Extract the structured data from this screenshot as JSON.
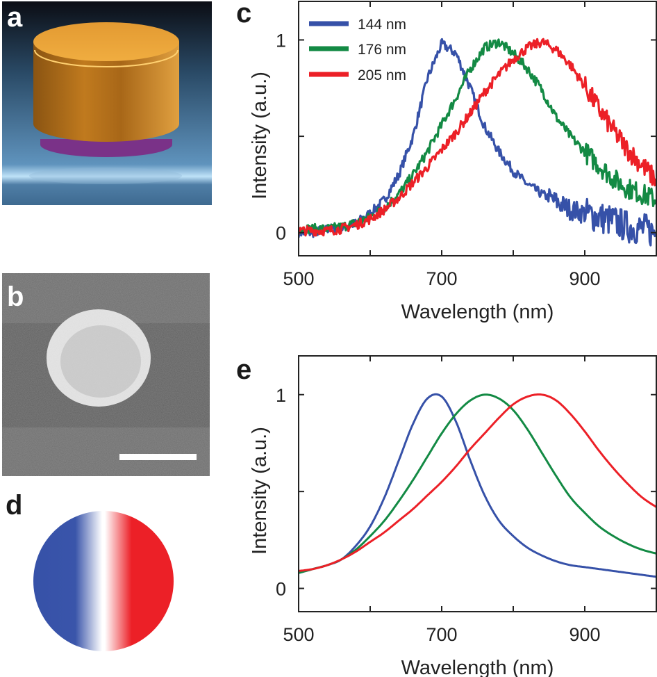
{
  "panels": {
    "a": {
      "letter": "a"
    },
    "b": {
      "letter": "b"
    },
    "c": {
      "letter": "c"
    },
    "d": {
      "letter": "d"
    },
    "e": {
      "letter": "e"
    }
  },
  "colors": {
    "blue": "#3651a8",
    "green": "#138a44",
    "red": "#ec2027",
    "disk_gold": "#d8902a",
    "disk_base": "#8a3a96",
    "substrate": "#5a8ab0"
  },
  "chart_data": [
    {
      "panel": "c",
      "type": "line",
      "xlabel": "Wavelength (nm)",
      "ylabel": "Intensity (a.u.)",
      "xlim": [
        500,
        1000
      ],
      "ylim": [
        -0.12,
        1.2
      ],
      "x_ticks": [
        500,
        600,
        700,
        800,
        900,
        1000
      ],
      "x_tick_labels": [
        "500",
        "700",
        "900"
      ],
      "x_tick_label_values": [
        500,
        700,
        900
      ],
      "y_ticks": [
        0,
        0.5,
        1
      ],
      "y_tick_labels": [
        "0",
        "1"
      ],
      "y_tick_label_values": [
        0,
        1
      ],
      "grid": false,
      "legend": "top-left",
      "x": [
        500,
        520,
        540,
        560,
        580,
        600,
        620,
        640,
        660,
        680,
        700,
        720,
        740,
        760,
        780,
        800,
        820,
        840,
        860,
        880,
        900,
        920,
        940,
        960,
        980,
        1000
      ],
      "series": [
        {
          "name": "144 nm",
          "color": "#3651a8",
          "values": [
            0,
            0,
            0.02,
            0.02,
            0.05,
            0.1,
            0.17,
            0.3,
            0.5,
            0.8,
            0.98,
            0.93,
            0.75,
            0.55,
            0.42,
            0.32,
            0.25,
            0.2,
            0.16,
            0.12,
            0.1,
            0.08,
            0.06,
            0.03,
            0.02,
            0
          ]
        },
        {
          "name": "176 nm",
          "color": "#138a44",
          "values": [
            0.02,
            0.02,
            0.02,
            0.03,
            0.05,
            0.08,
            0.13,
            0.2,
            0.3,
            0.42,
            0.56,
            0.7,
            0.85,
            0.96,
            0.99,
            0.93,
            0.85,
            0.74,
            0.6,
            0.5,
            0.42,
            0.35,
            0.28,
            0.23,
            0.2,
            0.17
          ]
        },
        {
          "name": "205 nm",
          "color": "#ec2027",
          "values": [
            0.01,
            0.01,
            0.01,
            0.02,
            0.04,
            0.07,
            0.12,
            0.18,
            0.26,
            0.34,
            0.43,
            0.52,
            0.62,
            0.73,
            0.82,
            0.9,
            0.96,
            0.99,
            0.95,
            0.87,
            0.76,
            0.64,
            0.53,
            0.43,
            0.35,
            0.27
          ]
        }
      ]
    },
    {
      "panel": "e",
      "type": "line",
      "xlabel": "Wavelength (nm)",
      "ylabel": "Intensity (a.u.)",
      "xlim": [
        500,
        1000
      ],
      "ylim": [
        -0.12,
        1.2
      ],
      "x_ticks": [
        500,
        600,
        700,
        800,
        900,
        1000
      ],
      "x_tick_labels": [
        "500",
        "700",
        "900"
      ],
      "x_tick_label_values": [
        500,
        700,
        900
      ],
      "y_ticks": [
        0,
        0.5,
        1
      ],
      "y_tick_labels": [
        "0",
        "1"
      ],
      "y_tick_label_values": [
        0,
        1
      ],
      "grid": false,
      "x": [
        500,
        520,
        540,
        560,
        580,
        600,
        620,
        640,
        660,
        680,
        700,
        720,
        740,
        760,
        780,
        800,
        820,
        840,
        860,
        880,
        900,
        920,
        940,
        960,
        980,
        1000
      ],
      "series": [
        {
          "color": "#3651a8",
          "values": [
            0.08,
            0.1,
            0.12,
            0.15,
            0.22,
            0.32,
            0.47,
            0.66,
            0.85,
            0.98,
            0.99,
            0.86,
            0.66,
            0.48,
            0.35,
            0.27,
            0.21,
            0.17,
            0.14,
            0.12,
            0.11,
            0.1,
            0.09,
            0.08,
            0.07,
            0.06
          ]
        },
        {
          "color": "#138a44",
          "values": [
            0.08,
            0.1,
            0.12,
            0.15,
            0.2,
            0.27,
            0.35,
            0.45,
            0.56,
            0.68,
            0.8,
            0.9,
            0.97,
            1.0,
            0.98,
            0.92,
            0.82,
            0.7,
            0.58,
            0.47,
            0.39,
            0.32,
            0.27,
            0.23,
            0.2,
            0.18
          ]
        },
        {
          "color": "#ec2027",
          "values": [
            0.09,
            0.1,
            0.12,
            0.15,
            0.19,
            0.24,
            0.29,
            0.35,
            0.41,
            0.48,
            0.55,
            0.63,
            0.72,
            0.8,
            0.88,
            0.95,
            0.99,
            1.0,
            0.97,
            0.9,
            0.81,
            0.71,
            0.62,
            0.54,
            0.47,
            0.42
          ]
        }
      ]
    }
  ]
}
